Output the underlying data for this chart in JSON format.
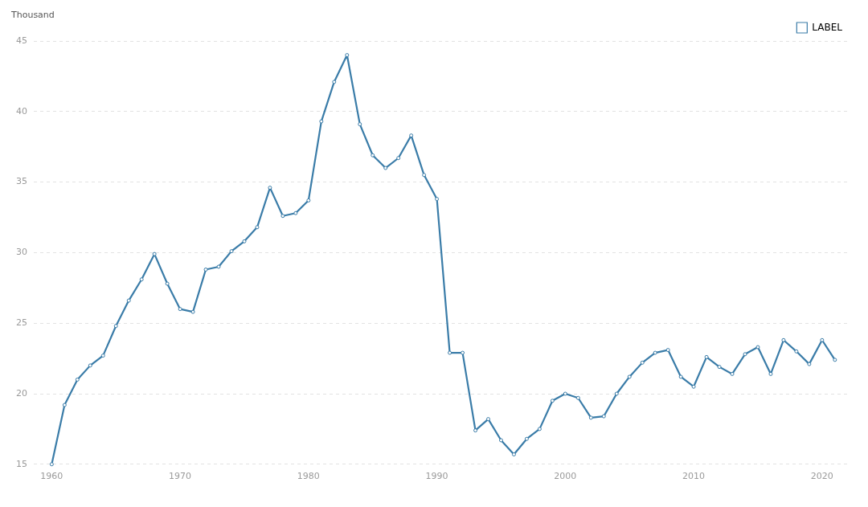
{
  "chart_data": {
    "type": "line",
    "ylabel": "Thousand",
    "x": [
      1960,
      1961,
      1962,
      1963,
      1964,
      1965,
      1966,
      1967,
      1968,
      1969,
      1970,
      1971,
      1972,
      1973,
      1974,
      1975,
      1976,
      1977,
      1978,
      1979,
      1980,
      1981,
      1982,
      1983,
      1984,
      1985,
      1986,
      1987,
      1988,
      1989,
      1990,
      1991,
      1992,
      1993,
      1994,
      1995,
      1996,
      1997,
      1998,
      1999,
      2000,
      2001,
      2002,
      2003,
      2004,
      2005,
      2006,
      2007,
      2008,
      2009,
      2010,
      2011,
      2012,
      2013,
      2014,
      2015,
      2016,
      2017,
      2018,
      2019,
      2020,
      2021
    ],
    "series": [
      {
        "name": "LABEL",
        "color": "#3a7ca8",
        "values": [
          15.0,
          19.2,
          21.0,
          22.0,
          22.7,
          24.8,
          26.6,
          28.1,
          29.9,
          27.8,
          26.0,
          25.8,
          28.8,
          29.0,
          30.1,
          30.8,
          31.8,
          34.6,
          32.6,
          32.8,
          33.7,
          39.3,
          42.1,
          44.0,
          39.1,
          36.9,
          36.0,
          36.7,
          38.3,
          35.5,
          33.8,
          22.9,
          22.9,
          17.4,
          18.2,
          16.7,
          15.7,
          16.8,
          17.5,
          19.5,
          20.0,
          19.7,
          18.3,
          18.4,
          20.0,
          21.2,
          22.2,
          22.9,
          23.1,
          21.2,
          20.5,
          22.6,
          21.9,
          21.4,
          22.8,
          23.3,
          21.4,
          23.8,
          23.0,
          22.1,
          23.8,
          22.4
        ]
      }
    ],
    "xlim": [
      1958.6,
      2022.2
    ],
    "xticks": [
      1960,
      1970,
      1980,
      1990,
      2000,
      2010,
      2020
    ],
    "ylim": [
      15,
      45
    ],
    "yticks": [
      15,
      20,
      25,
      30,
      35,
      40,
      45
    ],
    "grid": "y",
    "legend": "top right",
    "marker": "circle",
    "line_style": "solid"
  }
}
